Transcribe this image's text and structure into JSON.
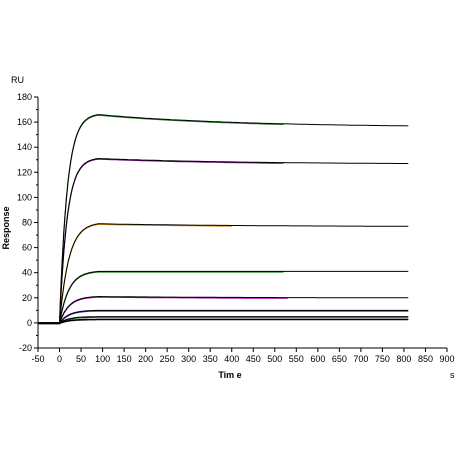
{
  "chart_data": {
    "type": "line",
    "title": "",
    "xlabel": "Tim e",
    "ylabel": "Response",
    "y_unit": "RU",
    "x_unit": "s",
    "xlim": [
      -50,
      900
    ],
    "ylim": [
      -20,
      180
    ],
    "x_ticks": [
      -50,
      0,
      50,
      100,
      150,
      200,
      250,
      300,
      350,
      400,
      450,
      500,
      550,
      600,
      650,
      700,
      750,
      800,
      850,
      900
    ],
    "y_ticks": [
      -20,
      0,
      20,
      40,
      60,
      80,
      100,
      120,
      140,
      160,
      180
    ],
    "grid": false,
    "legend": "none",
    "baseline_value": 0,
    "association_end": 90,
    "x_end": 810,
    "series": [
      {
        "plateau": 166,
        "end": 157,
        "color": "#1a7a1a",
        "fit_color": "#000000",
        "raw_end": 520
      },
      {
        "plateau": 131,
        "end": 127,
        "color": "#6a0a7a",
        "fit_color": "#000000",
        "raw_end": 520
      },
      {
        "plateau": 79,
        "end": 77,
        "color": "#d08a00",
        "fit_color": "#000000",
        "raw_end": 400
      },
      {
        "plateau": 41,
        "end": 41,
        "color": "#1a7a1a",
        "fit_color": "#000000",
        "raw_end": 520
      },
      {
        "plateau": 21,
        "end": 20,
        "color": "#a000a0",
        "fit_color": "#000000",
        "raw_end": 530
      },
      {
        "plateau": 10,
        "end": 10,
        "color": "#1a2aa0",
        "fit_color": "#000000",
        "raw_end": 810
      },
      {
        "plateau": 5,
        "end": 5,
        "color": "#0a5a0a",
        "fit_color": "#000000",
        "raw_end": 810
      },
      {
        "plateau": 3,
        "end": 3,
        "color": "#000000",
        "fit_color": "#000000",
        "raw_end": 810
      }
    ]
  }
}
